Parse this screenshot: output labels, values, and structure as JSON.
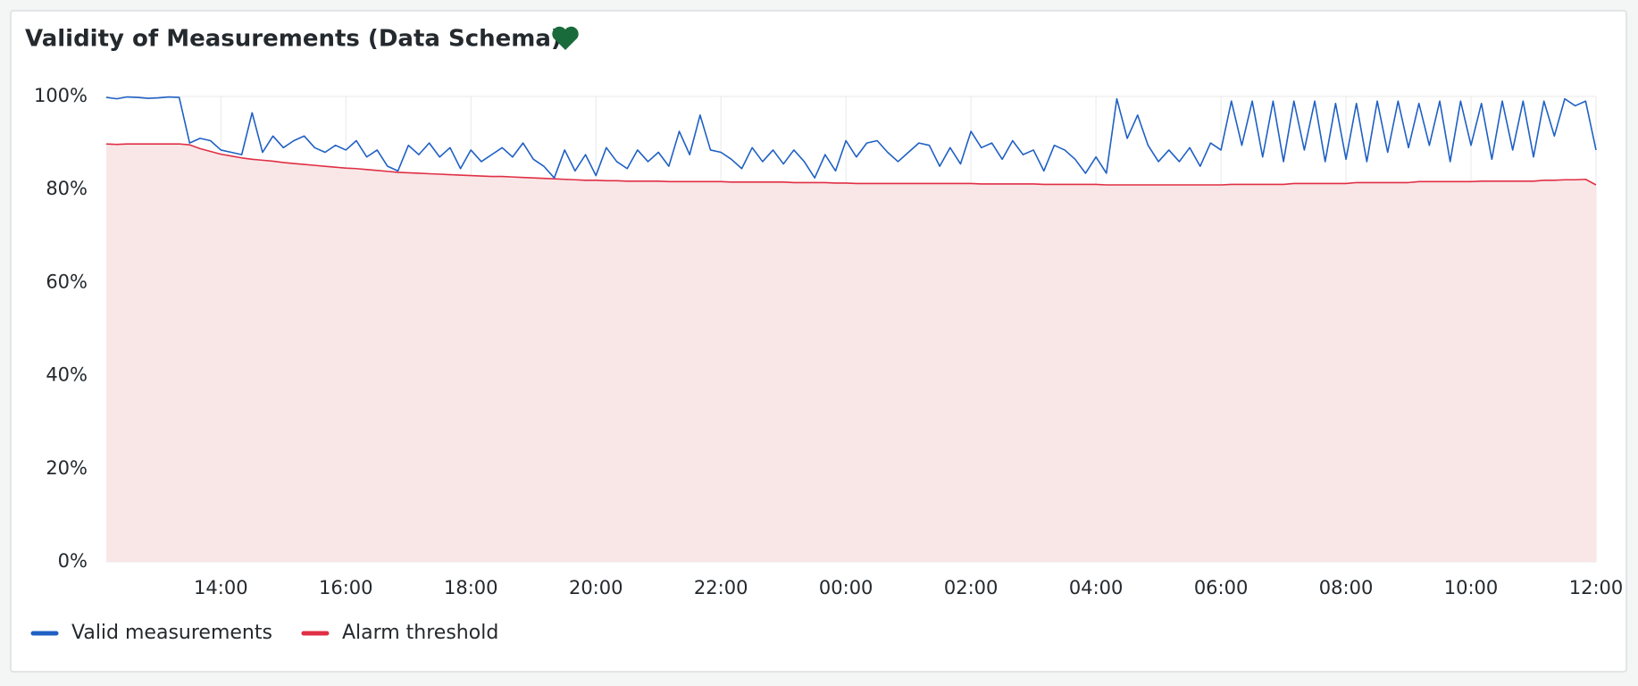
{
  "chart_data": {
    "type": "line",
    "title": "Validity of Measurements (Data Schema)",
    "x": [
      "12:10",
      "12:20",
      "12:30",
      "12:40",
      "12:50",
      "13:00",
      "13:10",
      "13:20",
      "13:30",
      "13:40",
      "13:50",
      "14:00",
      "14:10",
      "14:20",
      "14:30",
      "14:40",
      "14:50",
      "15:00",
      "15:10",
      "15:20",
      "15:30",
      "15:40",
      "15:50",
      "16:00",
      "16:10",
      "16:20",
      "16:30",
      "16:40",
      "16:50",
      "17:00",
      "17:10",
      "17:20",
      "17:30",
      "17:40",
      "17:50",
      "18:00",
      "18:10",
      "18:20",
      "18:30",
      "18:40",
      "18:50",
      "19:00",
      "19:10",
      "19:20",
      "19:30",
      "19:40",
      "19:50",
      "20:00",
      "20:10",
      "20:20",
      "20:30",
      "20:40",
      "20:50",
      "21:00",
      "21:10",
      "21:20",
      "21:30",
      "21:40",
      "21:50",
      "22:00",
      "22:10",
      "22:20",
      "22:30",
      "22:40",
      "22:50",
      "23:00",
      "23:10",
      "23:20",
      "23:30",
      "23:40",
      "23:50",
      "00:00",
      "00:10",
      "00:20",
      "00:30",
      "00:40",
      "00:50",
      "01:00",
      "01:10",
      "01:20",
      "01:30",
      "01:40",
      "01:50",
      "02:00",
      "02:10",
      "02:20",
      "02:30",
      "02:40",
      "02:50",
      "03:00",
      "03:10",
      "03:20",
      "03:30",
      "03:40",
      "03:50",
      "04:00",
      "04:10",
      "04:20",
      "04:30",
      "04:40",
      "04:50",
      "05:00",
      "05:10",
      "05:20",
      "05:30",
      "05:40",
      "05:50",
      "06:00",
      "06:10",
      "06:20",
      "06:30",
      "06:40",
      "06:50",
      "07:00",
      "07:10",
      "07:20",
      "07:30",
      "07:40",
      "07:50",
      "08:00",
      "08:10",
      "08:20",
      "08:30",
      "08:40",
      "08:50",
      "09:00",
      "09:10",
      "09:20",
      "09:30",
      "09:40",
      "09:50",
      "10:00",
      "10:10",
      "10:20",
      "10:30",
      "10:40",
      "10:50",
      "11:00",
      "11:10",
      "11:20",
      "11:30",
      "11:40",
      "11:50",
      "12:00"
    ],
    "series": [
      {
        "name": "Valid measurements",
        "color": "#1f60c4",
        "values": [
          99.8,
          99.5,
          99.9,
          99.8,
          99.6,
          99.7,
          99.9,
          99.8,
          90,
          91,
          90.5,
          88.5,
          88,
          87.5,
          96.5,
          88,
          91.5,
          89,
          90.5,
          91.5,
          89,
          88,
          89.5,
          88.5,
          90.5,
          87,
          88.5,
          85,
          84,
          89.5,
          87.5,
          90,
          87,
          89,
          84.5,
          88.5,
          86,
          87.5,
          89,
          87,
          90,
          86.5,
          85,
          82.5,
          88.5,
          84,
          87.5,
          83,
          89,
          86,
          84.5,
          88.5,
          86,
          88,
          85,
          92.5,
          87.5,
          96,
          88.5,
          88,
          86.5,
          84.5,
          89,
          86,
          88.5,
          85.5,
          88.5,
          86,
          82.5,
          87.5,
          84,
          90.5,
          87,
          90,
          90.5,
          88,
          86,
          88,
          90,
          89.5,
          85,
          89,
          85.5,
          92.5,
          89,
          90,
          86.5,
          90.5,
          87.5,
          88.5,
          84,
          89.5,
          88.5,
          86.5,
          83.5,
          87,
          83.5,
          99.5,
          91,
          96,
          89.5,
          86,
          88.5,
          86,
          89,
          85,
          90,
          88.5,
          99,
          89.5,
          99,
          87,
          99,
          86,
          99,
          88.5,
          99,
          86,
          98.5,
          86.5,
          98.5,
          86,
          99,
          88,
          99,
          89,
          98.5,
          89.5,
          99,
          86,
          99,
          89.5,
          98.5,
          86.5,
          99,
          88.5,
          99,
          87,
          99,
          91.5,
          99.5,
          98,
          99,
          88.5
        ]
      },
      {
        "name": "Alarm threshold",
        "color": "#e02f44",
        "fill": "#f9e6e7",
        "values": [
          89.8,
          89.7,
          89.8,
          89.8,
          89.8,
          89.8,
          89.8,
          89.8,
          89.6,
          88.8,
          88.2,
          87.6,
          87.2,
          86.8,
          86.5,
          86.3,
          86.1,
          85.8,
          85.6,
          85.4,
          85.2,
          85.0,
          84.8,
          84.6,
          84.5,
          84.3,
          84.1,
          83.9,
          83.7,
          83.6,
          83.5,
          83.4,
          83.3,
          83.2,
          83.1,
          83.0,
          82.9,
          82.8,
          82.8,
          82.7,
          82.6,
          82.5,
          82.4,
          82.3,
          82.2,
          82.1,
          82.0,
          82.0,
          81.9,
          81.9,
          81.8,
          81.8,
          81.8,
          81.8,
          81.7,
          81.7,
          81.7,
          81.7,
          81.7,
          81.7,
          81.6,
          81.6,
          81.6,
          81.6,
          81.6,
          81.6,
          81.5,
          81.5,
          81.5,
          81.5,
          81.4,
          81.4,
          81.3,
          81.3,
          81.3,
          81.3,
          81.3,
          81.3,
          81.3,
          81.3,
          81.3,
          81.3,
          81.3,
          81.3,
          81.2,
          81.2,
          81.2,
          81.2,
          81.2,
          81.2,
          81.1,
          81.1,
          81.1,
          81.1,
          81.1,
          81.1,
          81.0,
          81.0,
          81.0,
          81.0,
          81.0,
          81.0,
          81.0,
          81.0,
          81.0,
          81.0,
          81.0,
          81.0,
          81.1,
          81.1,
          81.1,
          81.1,
          81.1,
          81.1,
          81.3,
          81.3,
          81.3,
          81.3,
          81.3,
          81.3,
          81.5,
          81.5,
          81.5,
          81.5,
          81.5,
          81.5,
          81.7,
          81.7,
          81.7,
          81.7,
          81.7,
          81.7,
          81.8,
          81.8,
          81.8,
          81.8,
          81.8,
          81.8,
          82.0,
          82.0,
          82.1,
          82.1,
          82.2,
          81.0
        ]
      }
    ],
    "xticks": [
      "14:00",
      "16:00",
      "18:00",
      "20:00",
      "22:00",
      "00:00",
      "02:00",
      "04:00",
      "06:00",
      "08:00",
      "10:00",
      "12:00"
    ],
    "ylim": [
      0,
      100
    ],
    "yticks": [
      {
        "value": 0,
        "label": "0%"
      },
      {
        "value": 20,
        "label": "20%"
      },
      {
        "value": 40,
        "label": "40%"
      },
      {
        "value": 60,
        "label": "60%"
      },
      {
        "value": 80,
        "label": "80%"
      },
      {
        "value": 100,
        "label": "100%"
      }
    ],
    "grid": true,
    "legend": "bottom-left"
  }
}
